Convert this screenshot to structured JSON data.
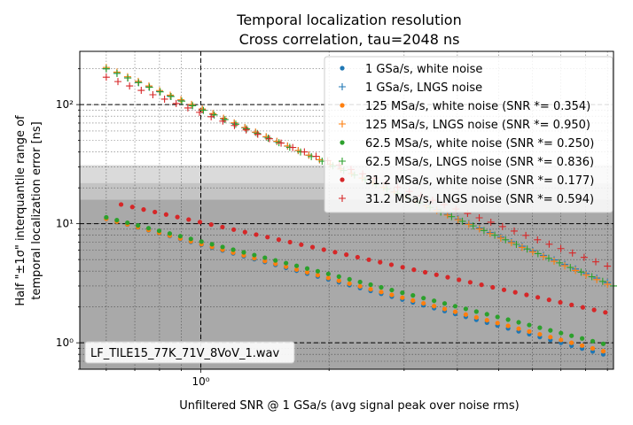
{
  "chart_data": {
    "type": "scatter",
    "title_lines": [
      "Temporal localization resolution",
      "Cross correlation, tau=2048 ns"
    ],
    "xlabel": "Unfiltered SNR @ 1 GSa/s (avg signal peak over noise rms)",
    "ylabel_lines": [
      "Half \"±1σ\" interquantile range of",
      "temporal localization error [ns]"
    ],
    "x_scale": "log",
    "y_scale": "log",
    "xlim": [
      0.52,
      9.3
    ],
    "ylim": [
      0.6,
      280
    ],
    "x_tick_labels": [
      {
        "value": 1,
        "label": "10⁰"
      }
    ],
    "y_tick_labels": [
      {
        "value": 1,
        "label": "10⁰"
      },
      {
        "value": 10,
        "label": "10¹"
      },
      {
        "value": 100,
        "label": "10²"
      }
    ],
    "grid": true,
    "reference_lines": {
      "vertical_dashed_x": 1,
      "horizontal_dashed_y": [
        1,
        10,
        100
      ]
    },
    "shaded_bands": [
      {
        "y_from": 0.6,
        "y_to": 1.0,
        "color": "#a6a6a6"
      },
      {
        "y_from": 1.0,
        "y_to": 16,
        "color": "#a9a9a9"
      },
      {
        "y_from": 16,
        "y_to": 22,
        "color": "#c4c4c4"
      },
      {
        "y_from": 22,
        "y_to": 31,
        "color": "#dadada"
      }
    ],
    "legend_position": "upper right",
    "annotation": "LF_TILE15_77K_71V_8VoV_1.wav",
    "series": [
      {
        "name": "1 GSa/s, white noise",
        "marker": "dot",
        "color": "#1f77b4",
        "x_start": 0.6,
        "x_end": 8.8,
        "count": 48,
        "y_start": 11.0,
        "y_end": 0.8
      },
      {
        "name": "1 GSa/s, LNGS noise",
        "marker": "plus",
        "color": "#1f77b4",
        "x_start": 0.6,
        "x_end": 9.0,
        "count": 48,
        "y_start": 200,
        "y_end": 3.2
      },
      {
        "name": "125 MSa/s, white noise (SNR *= 0.354)",
        "marker": "dot",
        "color": "#ff7f0e",
        "x_start": 0.6,
        "x_end": 8.8,
        "count": 48,
        "y_start": 11.0,
        "y_end": 0.85
      },
      {
        "name": "125 MSa/s, LNGS noise (SNR *= 0.950)",
        "marker": "plus",
        "color": "#ff7f0e",
        "x_start": 0.6,
        "x_end": 9.0,
        "count": 48,
        "y_start": 205,
        "y_end": 3.1
      },
      {
        "name": "62.5 MSa/s, white noise (SNR *= 0.250)",
        "marker": "dot",
        "color": "#2ca02c",
        "x_start": 0.6,
        "x_end": 8.8,
        "count": 48,
        "y_start": 11.3,
        "y_end": 0.98
      },
      {
        "name": "62.5 MSa/s, LNGS noise (SNR *= 0.836)",
        "marker": "plus",
        "color": "#2ca02c",
        "x_start": 0.6,
        "x_end": 9.3,
        "count": 48,
        "y_start": 200,
        "y_end": 3.0
      },
      {
        "name": "31.2 MSa/s, white noise (SNR *= 0.177)",
        "marker": "dot",
        "color": "#d62728",
        "x_start": 0.65,
        "x_end": 8.9,
        "count": 44,
        "y_start": 14.5,
        "y_end": 1.8
      },
      {
        "name": "31.2 MSa/s, LNGS noise (SNR *= 0.594)",
        "marker": "plus",
        "color": "#d62728",
        "x_start": 0.6,
        "x_end": 9.0,
        "count": 44,
        "y_start": 170,
        "y_end": 4.4
      }
    ]
  }
}
